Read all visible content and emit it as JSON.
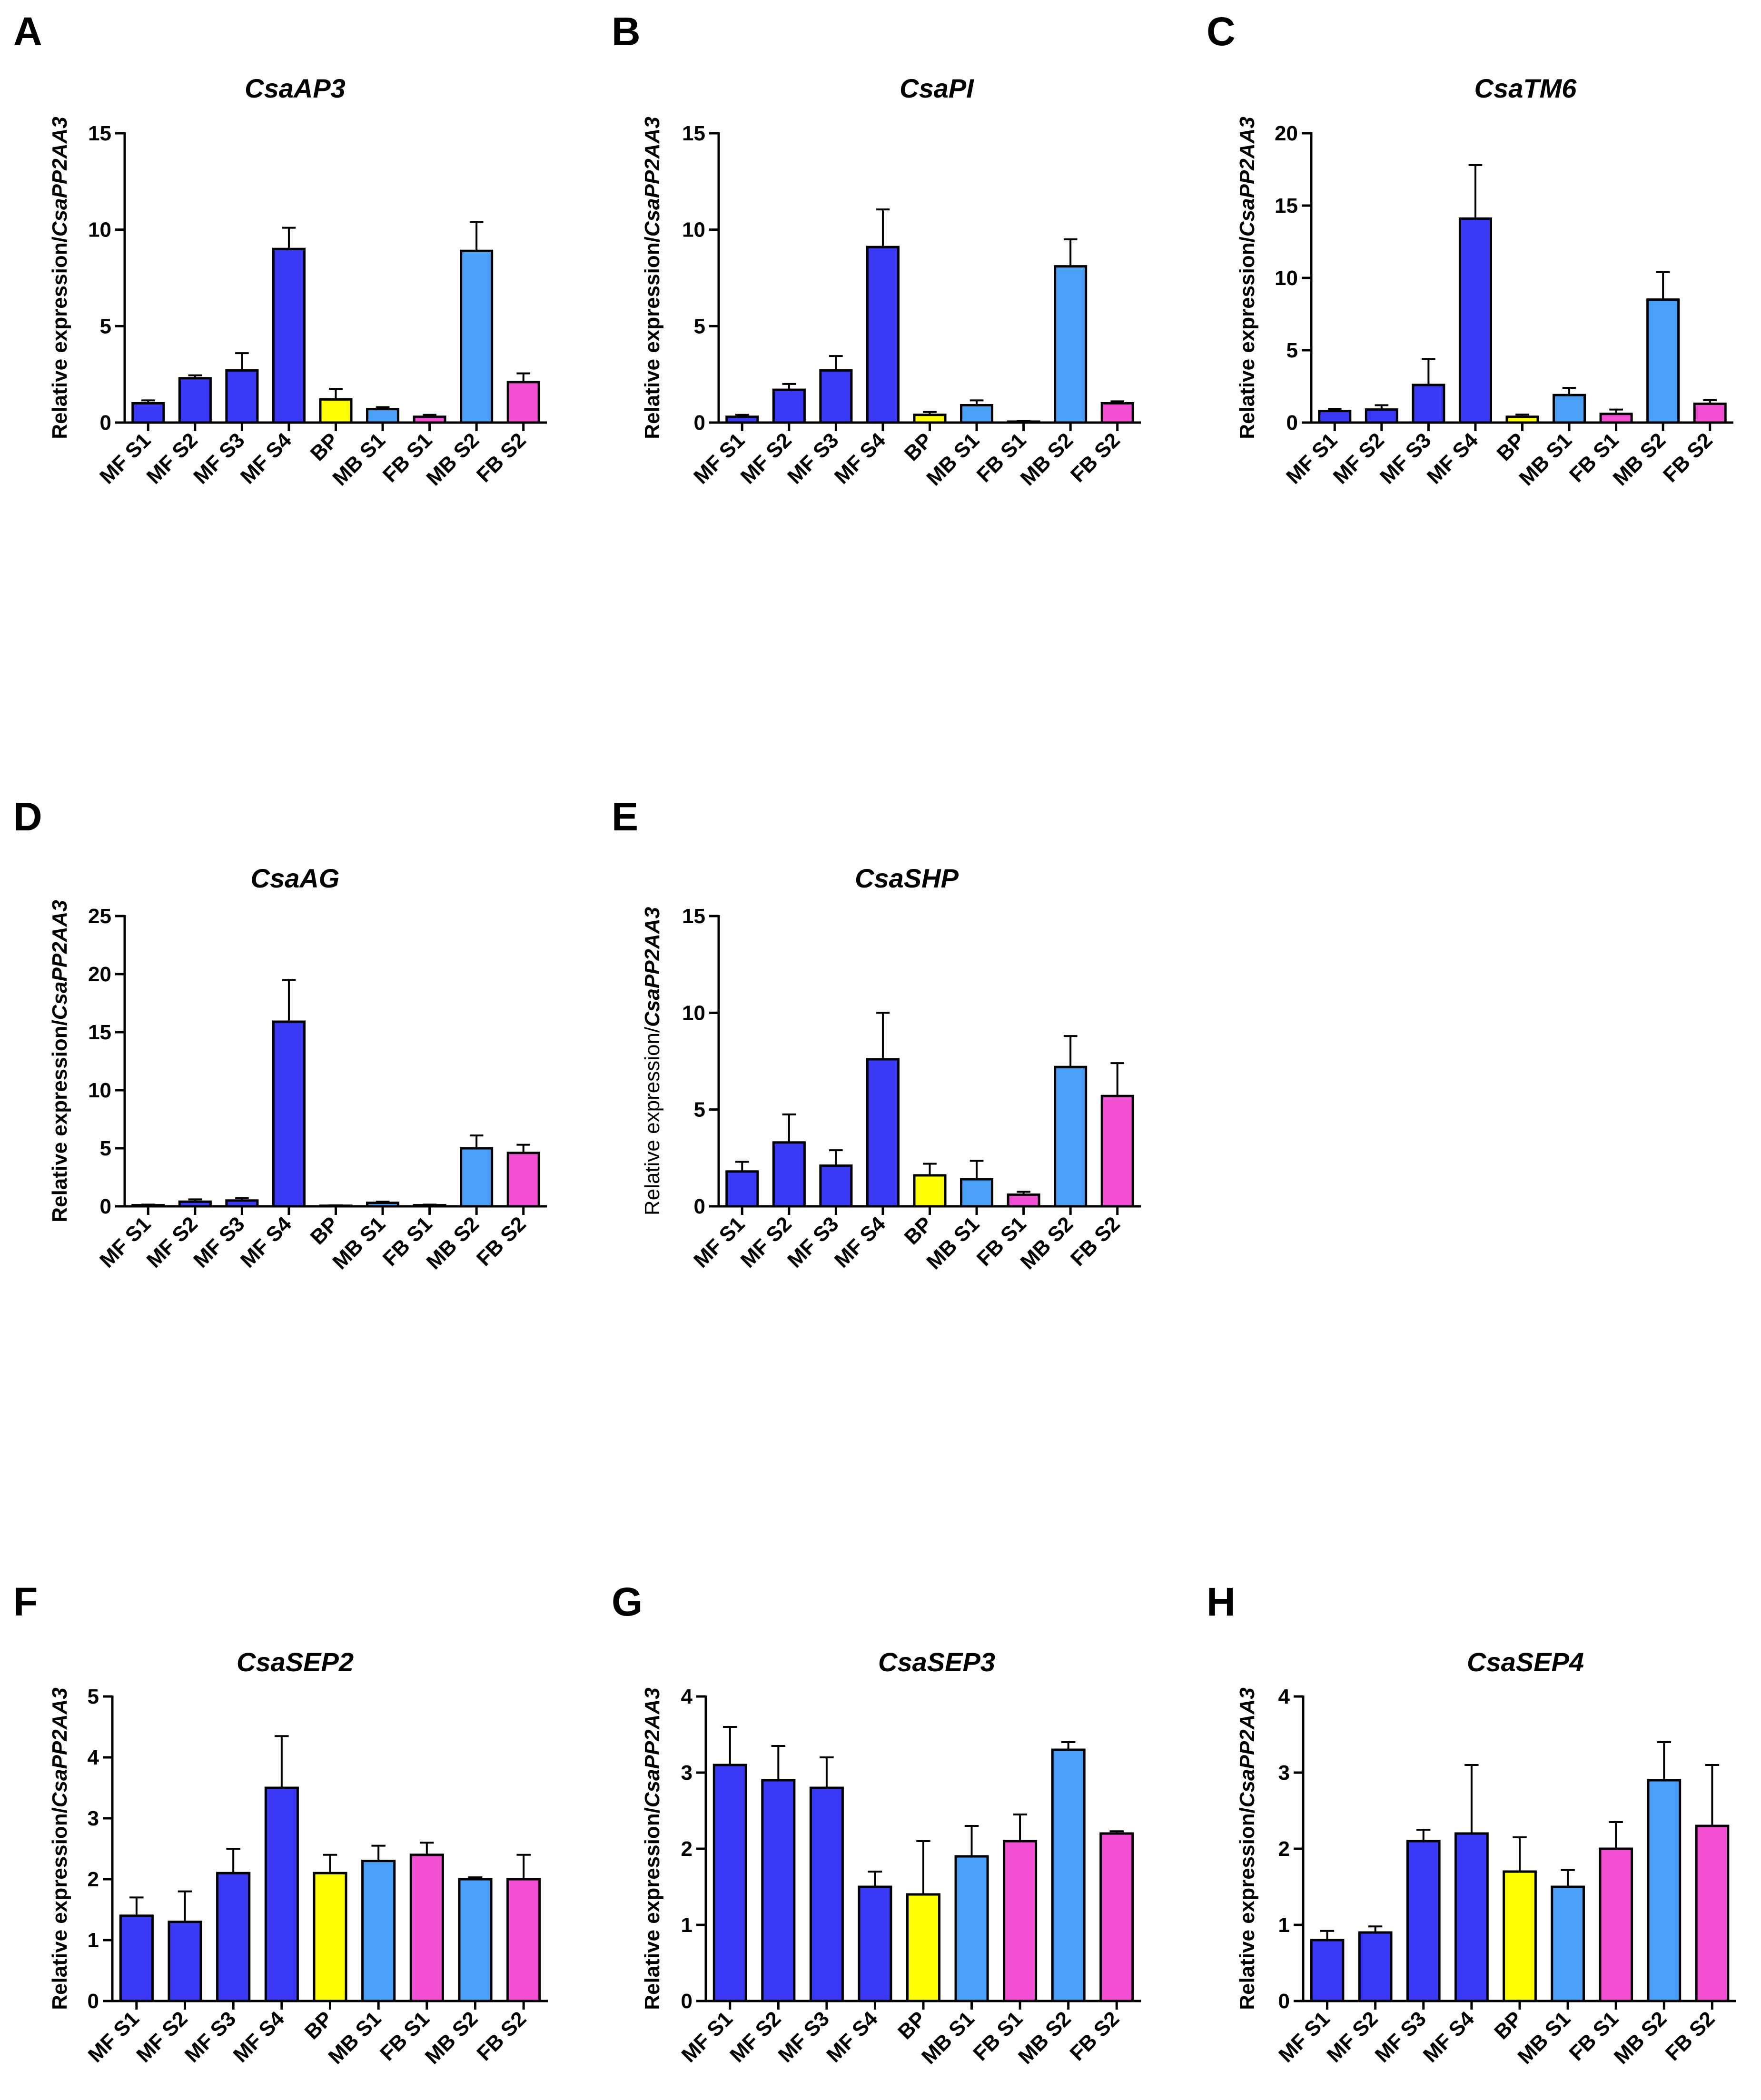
{
  "colors": {
    "MF S1": "#3a3af6",
    "MF S2": "#3a3af6",
    "MF S3": "#3a3af6",
    "MF S4": "#3a3af6",
    "BP": "#ffff00",
    "MB S1": "#4aa0f7",
    "FB S1": "#f24fd2",
    "MB S2": "#4aa0f7",
    "FB S2": "#f24fd2"
  },
  "chart_data": [
    {
      "panel": "A",
      "type": "bar",
      "title": "CsaAP3",
      "ylabel_prefix": "Relative expression/",
      "ylabel_gene": "CsaPP2AA3",
      "ylabel_bold": true,
      "ylim": [
        0,
        15
      ],
      "yticks": [
        0,
        5,
        10,
        15
      ],
      "categories": [
        "MF S1",
        "MF S2",
        "MF S3",
        "MF S4",
        "BP",
        "MB S1",
        "FB S1",
        "MB S2",
        "FB S2"
      ],
      "values": [
        1.0,
        2.3,
        2.7,
        9.0,
        1.2,
        0.7,
        0.3,
        8.9,
        2.1
      ],
      "errors": [
        0.15,
        0.15,
        0.9,
        1.1,
        0.55,
        0.1,
        0.1,
        1.5,
        0.45
      ]
    },
    {
      "panel": "B",
      "type": "bar",
      "title": "CsaPI",
      "ylabel_prefix": "Relative expression/",
      "ylabel_gene": "CsaPP2AA3",
      "ylabel_bold": true,
      "ylim": [
        0,
        15
      ],
      "yticks": [
        0,
        5,
        10,
        15
      ],
      "categories": [
        "MF S1",
        "MF S2",
        "MF S3",
        "MF S4",
        "BP",
        "MB S1",
        "FB S1",
        "MB S2",
        "FB S2"
      ],
      "values": [
        0.3,
        1.7,
        2.7,
        9.1,
        0.4,
        0.9,
        0.05,
        8.1,
        1.0
      ],
      "errors": [
        0.1,
        0.3,
        0.75,
        1.95,
        0.15,
        0.25,
        0.03,
        1.4,
        0.1
      ]
    },
    {
      "panel": "C",
      "type": "bar",
      "title": "CsaTM6",
      "ylabel_prefix": "Relative expression/",
      "ylabel_gene": "CsaPP2AA3",
      "ylabel_bold": true,
      "ylim": [
        0,
        20
      ],
      "yticks": [
        0,
        5,
        10,
        15,
        20
      ],
      "categories": [
        "MF S1",
        "MF S2",
        "MF S3",
        "MF S4",
        "BP",
        "MB S1",
        "FB S1",
        "MB S2",
        "FB S2"
      ],
      "values": [
        0.8,
        0.9,
        2.6,
        14.1,
        0.4,
        1.9,
        0.6,
        8.5,
        1.3
      ],
      "errors": [
        0.15,
        0.3,
        1.8,
        3.7,
        0.15,
        0.5,
        0.3,
        1.9,
        0.25
      ]
    },
    {
      "panel": "D",
      "type": "bar",
      "title": "CsaAG",
      "ylabel_prefix": "Relative expression/",
      "ylabel_gene": "CsaPP2AA3",
      "ylabel_bold": true,
      "ylim": [
        0,
        25
      ],
      "yticks": [
        0,
        5,
        10,
        15,
        20,
        25
      ],
      "categories": [
        "MF S1",
        "MF S2",
        "MF S3",
        "MF S4",
        "BP",
        "MB S1",
        "FB S1",
        "MB S2",
        "FB S2"
      ],
      "values": [
        0.1,
        0.4,
        0.5,
        15.9,
        0.05,
        0.3,
        0.1,
        5.0,
        4.6
      ],
      "errors": [
        0.05,
        0.2,
        0.2,
        3.6,
        0.03,
        0.1,
        0.05,
        1.1,
        0.7
      ]
    },
    {
      "panel": "E",
      "type": "bar",
      "title": "CsaSHP",
      "ylabel_prefix": "Relative expression/",
      "ylabel_gene": "CsaPP2AA3",
      "ylabel_bold": false,
      "ylim": [
        0,
        15
      ],
      "yticks": [
        0,
        5,
        10,
        15
      ],
      "categories": [
        "MF S1",
        "MF S2",
        "MF S3",
        "MF S4",
        "BP",
        "MB S1",
        "FB S1",
        "MB S2",
        "FB S2"
      ],
      "values": [
        1.8,
        3.3,
        2.1,
        7.6,
        1.6,
        1.4,
        0.6,
        7.2,
        5.7
      ],
      "errors": [
        0.5,
        1.45,
        0.8,
        2.4,
        0.6,
        0.95,
        0.15,
        1.6,
        1.7
      ]
    },
    {
      "panel": "F",
      "type": "bar",
      "title": "CsaSEP2",
      "ylabel_prefix": "Relative expression/",
      "ylabel_gene": "CsaPP2AA3",
      "ylabel_bold": true,
      "ylim": [
        0,
        5
      ],
      "yticks": [
        0,
        1,
        2,
        3,
        4,
        5
      ],
      "categories": [
        "MF S1",
        "MF S2",
        "MF S3",
        "MF S4",
        "BP",
        "MB S1",
        "FB S1",
        "MB S2",
        "FB S2"
      ],
      "values": [
        1.4,
        1.3,
        2.1,
        3.5,
        2.1,
        2.3,
        2.4,
        2.0,
        2.0
      ],
      "errors": [
        0.3,
        0.5,
        0.4,
        0.85,
        0.3,
        0.25,
        0.2,
        0.03,
        0.4
      ]
    },
    {
      "panel": "G",
      "type": "bar",
      "title": "CsaSEP3",
      "ylabel_prefix": "Relative expression/",
      "ylabel_gene": "CsaPP2AA3",
      "ylabel_bold": true,
      "ylim": [
        0,
        4
      ],
      "yticks": [
        0,
        1,
        2,
        3,
        4
      ],
      "categories": [
        "MF S1",
        "MF S2",
        "MF S3",
        "MF S4",
        "BP",
        "MB S1",
        "FB S1",
        "MB S2",
        "FB S2"
      ],
      "values": [
        3.1,
        2.9,
        2.8,
        1.5,
        1.4,
        1.9,
        2.1,
        3.3,
        2.2
      ],
      "errors": [
        0.5,
        0.45,
        0.4,
        0.2,
        0.7,
        0.4,
        0.35,
        0.1,
        0.03
      ]
    },
    {
      "panel": "H",
      "type": "bar",
      "title": "CsaSEP4",
      "ylabel_prefix": "Relative expression/",
      "ylabel_gene": "CsaPP2AA3",
      "ylabel_bold": true,
      "ylim": [
        0,
        4
      ],
      "yticks": [
        0,
        1,
        2,
        3,
        4
      ],
      "categories": [
        "MF S1",
        "MF S2",
        "MF S3",
        "MF S4",
        "BP",
        "MB S1",
        "FB S1",
        "MB S2",
        "FB S2"
      ],
      "values": [
        0.8,
        0.9,
        2.1,
        2.2,
        1.7,
        1.5,
        2.0,
        2.9,
        2.3
      ],
      "errors": [
        0.12,
        0.08,
        0.15,
        0.9,
        0.45,
        0.22,
        0.35,
        0.5,
        0.8
      ]
    }
  ]
}
